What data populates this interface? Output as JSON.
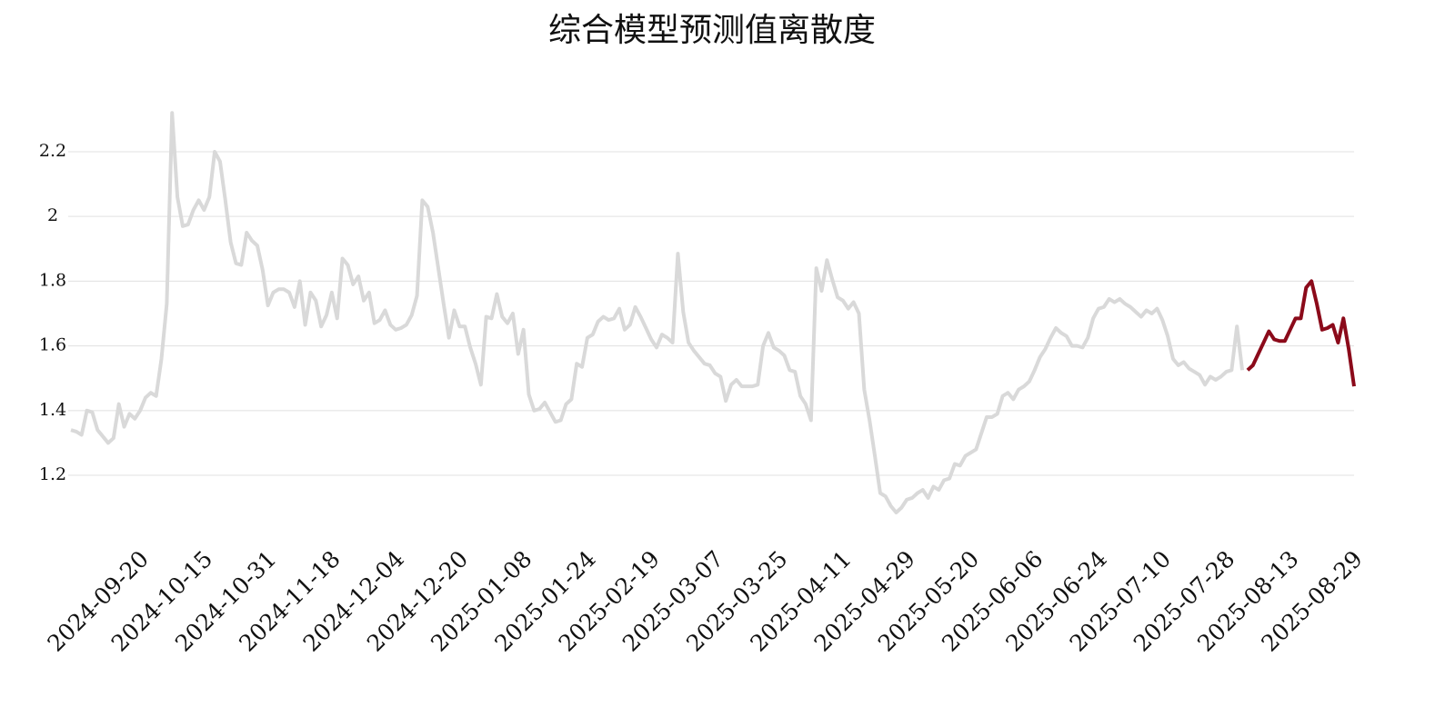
{
  "chart_data": {
    "type": "line",
    "title": "综合模型预测值离散度",
    "categories": [
      null,
      null,
      null,
      null,
      null,
      null,
      null,
      null,
      null,
      null,
      null,
      null,
      null,
      "2024-09-20",
      null,
      null,
      null,
      null,
      null,
      null,
      null,
      null,
      null,
      null,
      null,
      "2024-10-15",
      null,
      null,
      null,
      null,
      null,
      null,
      null,
      null,
      null,
      null,
      null,
      "2024-10-31",
      null,
      null,
      null,
      null,
      null,
      null,
      null,
      null,
      null,
      null,
      null,
      "2024-11-18",
      null,
      null,
      null,
      null,
      null,
      null,
      null,
      null,
      null,
      null,
      null,
      "2024-12-04",
      null,
      null,
      null,
      null,
      null,
      null,
      null,
      null,
      null,
      null,
      null,
      "2024-12-20",
      null,
      null,
      null,
      null,
      null,
      null,
      null,
      null,
      null,
      null,
      null,
      "2025-01-08",
      null,
      null,
      null,
      null,
      null,
      null,
      null,
      null,
      null,
      null,
      null,
      "2025-01-24",
      null,
      null,
      null,
      null,
      null,
      null,
      null,
      null,
      null,
      null,
      null,
      "2025-02-19",
      null,
      null,
      null,
      null,
      null,
      null,
      null,
      null,
      null,
      null,
      null,
      "2025-03-07",
      null,
      null,
      null,
      null,
      null,
      null,
      null,
      null,
      null,
      null,
      null,
      "2025-03-25",
      null,
      null,
      null,
      null,
      null,
      null,
      null,
      null,
      null,
      null,
      null,
      "2025-04-11",
      null,
      null,
      null,
      null,
      null,
      null,
      null,
      null,
      null,
      null,
      null,
      "2025-04-29",
      null,
      null,
      null,
      null,
      null,
      null,
      null,
      null,
      null,
      null,
      null,
      "2025-05-20",
      null,
      null,
      null,
      null,
      null,
      null,
      null,
      null,
      null,
      null,
      null,
      "2025-06-06",
      null,
      null,
      null,
      null,
      null,
      null,
      null,
      null,
      null,
      null,
      null,
      "2025-06-24",
      null,
      null,
      null,
      null,
      null,
      null,
      null,
      null,
      null,
      null,
      null,
      "2025-07-10",
      null,
      null,
      null,
      null,
      null,
      null,
      null,
      null,
      null,
      null,
      null,
      "2025-07-28",
      null,
      null,
      null,
      null,
      null,
      null,
      null,
      null,
      null,
      null,
      null,
      "2025-08-13",
      null,
      null,
      null,
      null,
      null,
      null,
      null,
      null,
      null,
      null,
      null,
      "2025-08-29"
    ],
    "series": [
      {
        "color": "#d9d9d9",
        "values": [
          1.34,
          1.335,
          1.325,
          1.4,
          1.395,
          1.34,
          1.32,
          1.3,
          1.315,
          1.42,
          1.35,
          1.39,
          1.375,
          1.4,
          1.44,
          1.455,
          1.445,
          1.56,
          1.73,
          2.32,
          2.06,
          1.97,
          1.975,
          2.02,
          2.05,
          2.02,
          2.06,
          2.2,
          2.17,
          2.05,
          1.92,
          1.855,
          1.85,
          1.95,
          1.925,
          1.91,
          1.835,
          1.725,
          1.765,
          1.775,
          1.775,
          1.765,
          1.72,
          1.8,
          1.665,
          1.765,
          1.74,
          1.66,
          1.695,
          1.765,
          1.685,
          1.87,
          1.85,
          1.79,
          1.815,
          1.74,
          1.765,
          1.67,
          1.68,
          1.71,
          1.665,
          1.65,
          1.655,
          1.665,
          1.695,
          1.755,
          2.05,
          2.03,
          1.95,
          1.84,
          1.73,
          1.625,
          1.71,
          1.66,
          1.66,
          1.595,
          1.545,
          1.48,
          1.69,
          1.685,
          1.76,
          1.69,
          1.67,
          1.7,
          1.575,
          1.65,
          1.45,
          1.4,
          1.405,
          1.425,
          1.395,
          1.365,
          1.37,
          1.42,
          1.435,
          1.545,
          1.535,
          1.625,
          1.635,
          1.675,
          1.69,
          1.68,
          1.685,
          1.715,
          1.65,
          1.665,
          1.72,
          1.69,
          1.655,
          1.62,
          1.595,
          1.635,
          1.625,
          1.61,
          1.885,
          1.705,
          1.61,
          1.585,
          1.565,
          1.545,
          1.54,
          1.515,
          1.505,
          1.43,
          1.48,
          1.495,
          1.475,
          1.475,
          1.475,
          1.48,
          1.6,
          1.64,
          1.595,
          1.585,
          1.57,
          1.525,
          1.52,
          1.445,
          1.42,
          1.37,
          1.84,
          1.77,
          1.865,
          1.805,
          1.75,
          1.74,
          1.715,
          1.735,
          1.7,
          1.465,
          1.37,
          1.26,
          1.145,
          1.135,
          1.105,
          1.085,
          1.1,
          1.125,
          1.13,
          1.145,
          1.155,
          1.13,
          1.165,
          1.155,
          1.185,
          1.19,
          1.235,
          1.23,
          1.26,
          1.27,
          1.28,
          1.33,
          1.38,
          1.38,
          1.39,
          1.445,
          1.455,
          1.435,
          1.465,
          1.475,
          1.49,
          1.525,
          1.565,
          1.59,
          1.625,
          1.655,
          1.64,
          1.63,
          1.6,
          1.6,
          1.595,
          1.625,
          1.685,
          1.715,
          1.72,
          1.745,
          1.735,
          1.745,
          1.73,
          1.72,
          1.705,
          1.69,
          1.71,
          1.7,
          1.715,
          1.68,
          1.63,
          1.56,
          1.54,
          1.55,
          1.53,
          1.52,
          1.51,
          1.48,
          1.505,
          1.495,
          1.505,
          1.52,
          1.525,
          1.66,
          1.525,
          null,
          null,
          null,
          null,
          null,
          null,
          null,
          null,
          null,
          null,
          null,
          null,
          null,
          null,
          null,
          null,
          null,
          null,
          null,
          null,
          null
        ]
      },
      {
        "color": "#8b0a1a",
        "values": [
          null,
          null,
          null,
          null,
          null,
          null,
          null,
          null,
          null,
          null,
          null,
          null,
          null,
          null,
          null,
          null,
          null,
          null,
          null,
          null,
          null,
          null,
          null,
          null,
          null,
          null,
          null,
          null,
          null,
          null,
          null,
          null,
          null,
          null,
          null,
          null,
          null,
          null,
          null,
          null,
          null,
          null,
          null,
          null,
          null,
          null,
          null,
          null,
          null,
          null,
          null,
          null,
          null,
          null,
          null,
          null,
          null,
          null,
          null,
          null,
          null,
          null,
          null,
          null,
          null,
          null,
          null,
          null,
          null,
          null,
          null,
          null,
          null,
          null,
          null,
          null,
          null,
          null,
          null,
          null,
          null,
          null,
          null,
          null,
          null,
          null,
          null,
          null,
          null,
          null,
          null,
          null,
          null,
          null,
          null,
          null,
          null,
          null,
          null,
          null,
          null,
          null,
          null,
          null,
          null,
          null,
          null,
          null,
          null,
          null,
          null,
          null,
          null,
          null,
          null,
          null,
          null,
          null,
          null,
          null,
          null,
          null,
          null,
          null,
          null,
          null,
          null,
          null,
          null,
          null,
          null,
          null,
          null,
          null,
          null,
          null,
          null,
          null,
          null,
          null,
          null,
          null,
          null,
          null,
          null,
          null,
          null,
          null,
          null,
          null,
          null,
          null,
          null,
          null,
          null,
          null,
          null,
          null,
          null,
          null,
          null,
          null,
          null,
          null,
          null,
          null,
          null,
          null,
          null,
          null,
          null,
          null,
          null,
          null,
          null,
          null,
          null,
          null,
          null,
          null,
          null,
          null,
          null,
          null,
          null,
          null,
          null,
          null,
          null,
          null,
          null,
          null,
          null,
          null,
          null,
          null,
          null,
          null,
          null,
          null,
          null,
          null,
          null,
          null,
          null,
          null,
          null,
          null,
          null,
          null,
          null,
          null,
          null,
          null,
          null,
          null,
          null,
          null,
          null,
          null,
          null,
          1.525,
          1.54,
          1.575,
          1.61,
          1.645,
          1.62,
          1.615,
          1.615,
          1.65,
          1.685,
          1.685,
          1.78,
          1.8,
          1.73,
          1.65,
          1.655,
          1.665,
          1.61,
          1.685,
          1.59,
          1.475
        ]
      }
    ],
    "ylim": [
      1.04,
      2.36
    ],
    "yticks": [
      1.2,
      1.4,
      1.6,
      1.8,
      2,
      2.2
    ],
    "grid": true
  }
}
